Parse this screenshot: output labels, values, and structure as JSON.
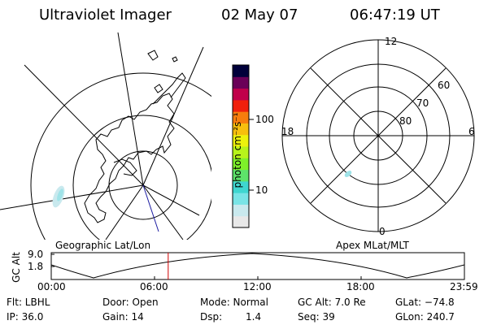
{
  "header": {
    "instrument": "Ultraviolet Imager",
    "date": "02 May 07",
    "time": "06:47:19 UT"
  },
  "geo_panel": {
    "label": "Geographic Lat/Lon"
  },
  "colorbar": {
    "unit_label": "photon cm⁻²s⁻¹",
    "tick_100": "100",
    "tick_10": "10",
    "colors": [
      "#e8e8e8",
      "#c9e9ee",
      "#79e4e6",
      "#3fd6d0",
      "#5de36a",
      "#7ef02a",
      "#b7f31b",
      "#edf20c",
      "#f7bf0d",
      "#f77d0d",
      "#f0200c",
      "#c0004a",
      "#6a0058",
      "#00003a"
    ]
  },
  "polar_panel": {
    "label": "Apex MLat/MLT",
    "mlt_top": "12",
    "mlt_left": "18",
    "mlt_right": "6",
    "mlt_bottom": "0",
    "lat_60": "60",
    "lat_70": "70",
    "lat_80": "80"
  },
  "altitude_plot": {
    "ylabel": "GC Alt",
    "ytick_top": "9.0",
    "ytick_bottom": "1.8",
    "xticks": [
      "00:00",
      "06:00",
      "12:00",
      "18:00",
      "23:59"
    ],
    "current_time_fraction": 0.283
  },
  "info": {
    "flt": "Flt: LBHL",
    "ip": "IP: 36.0",
    "door": "Door: Open",
    "gain": "Gain: 14",
    "mode": "Mode: Normal",
    "dsp_label": "Dsp:",
    "dsp_value": "1.4",
    "gc_alt": "GC Alt: 7.0 Re",
    "seq": "Seq: 39",
    "glat": "GLat: −74.8",
    "glon": "GLon: 240.7"
  }
}
